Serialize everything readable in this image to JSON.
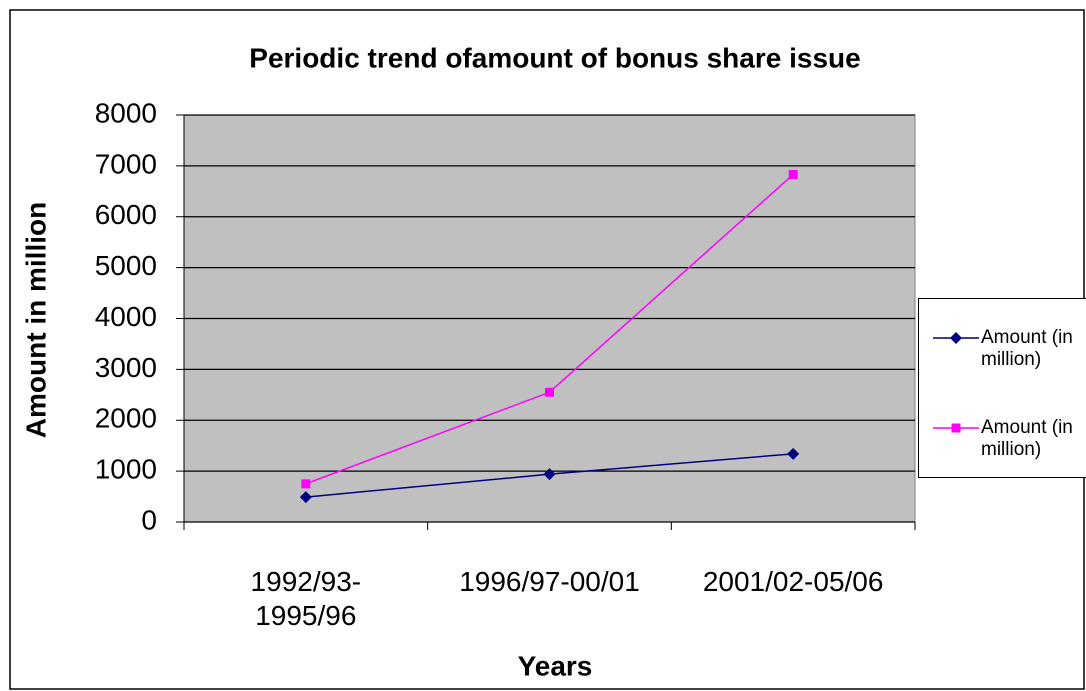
{
  "chart_data": {
    "type": "line",
    "title": "Periodic trend ofamount of  bonus share issue",
    "x_label": "Years",
    "y_label": "Amount in million",
    "categories": [
      "1992/93-1995/96",
      "1996/97-00/01",
      "2001/02-05/06"
    ],
    "series": [
      {
        "name": "Amount (in million)",
        "color": "#000080",
        "marker": "diamond",
        "values": [
          490,
          940,
          1340
        ]
      },
      {
        "name": "Amount (in million)",
        "color": "#ff00ff",
        "marker": "square",
        "values": [
          750,
          2550,
          6830
        ]
      }
    ],
    "ylim": [
      0,
      8000
    ],
    "yticks": [
      0,
      1000,
      2000,
      3000,
      4000,
      5000,
      6000,
      7000,
      8000
    ],
    "grid": true,
    "legend": "right"
  }
}
